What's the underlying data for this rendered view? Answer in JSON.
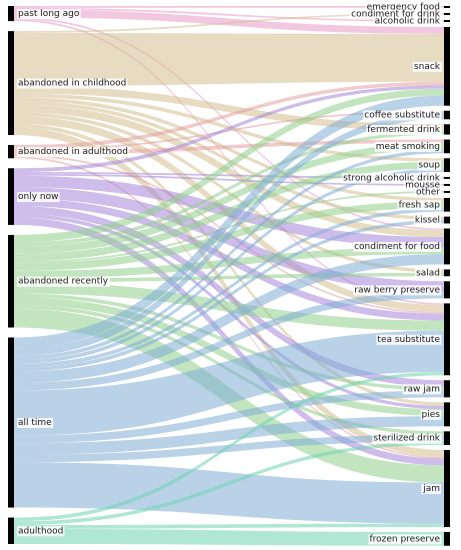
{
  "chart_data": {
    "type": "sankey",
    "title": "",
    "sources": [
      {
        "id": "past_long_ago",
        "label": "past long ago"
      },
      {
        "id": "abandoned_childhood",
        "label": "abandoned in childhood"
      },
      {
        "id": "abandoned_adulthood",
        "label": "abandoned in adulthood"
      },
      {
        "id": "only_now",
        "label": "only now"
      },
      {
        "id": "abandoned_recently",
        "label": "abandoned recently"
      },
      {
        "id": "all_time",
        "label": "all time"
      },
      {
        "id": "adulthood",
        "label": "adulthood"
      }
    ],
    "targets": [
      {
        "id": "emergency_food",
        "label": "emergency food"
      },
      {
        "id": "condiment_drink",
        "label": "condiment for drink"
      },
      {
        "id": "alcoholic_drink",
        "label": "alcoholic drink"
      },
      {
        "id": "snack",
        "label": "snack"
      },
      {
        "id": "coffee_substitute",
        "label": "coffee substitute"
      },
      {
        "id": "fermented_drink",
        "label": "fermented drink"
      },
      {
        "id": "meat_smoking",
        "label": "meat smoking"
      },
      {
        "id": "soup",
        "label": "soup"
      },
      {
        "id": "strong_alcoholic",
        "label": "strong alcoholic drink"
      },
      {
        "id": "mousse",
        "label": "mousse"
      },
      {
        "id": "other",
        "label": "other"
      },
      {
        "id": "fresh_sap",
        "label": "fresh sap"
      },
      {
        "id": "kissel",
        "label": "kissel"
      },
      {
        "id": "condiment_food",
        "label": "condiment for food"
      },
      {
        "id": "salad",
        "label": "salad"
      },
      {
        "id": "raw_berry",
        "label": "raw berry preserve"
      },
      {
        "id": "tea_substitute",
        "label": "tea substitute"
      },
      {
        "id": "raw_jam",
        "label": "raw jam"
      },
      {
        "id": "pies",
        "label": "pies"
      },
      {
        "id": "sterilized_drink",
        "label": "sterilized drink"
      },
      {
        "id": "jam",
        "label": "jam"
      },
      {
        "id": "frozen_preserve",
        "label": "frozen preserve"
      }
    ],
    "links": [
      {
        "source": "past_long_ago",
        "target": "snack",
        "value": 2
      },
      {
        "source": "past_long_ago",
        "target": "emergency_food",
        "value": 0.5
      },
      {
        "source": "past_long_ago",
        "target": "alcoholic_drink",
        "value": 0.5
      },
      {
        "source": "past_long_ago",
        "target": "condiment_food",
        "value": 0.5
      },
      {
        "source": "past_long_ago",
        "target": "tea_substitute",
        "value": 0.5
      },
      {
        "source": "abandoned_childhood",
        "target": "snack",
        "value": 14
      },
      {
        "source": "abandoned_childhood",
        "target": "fermented_drink",
        "value": 2
      },
      {
        "source": "abandoned_childhood",
        "target": "soup",
        "value": 1
      },
      {
        "source": "abandoned_childhood",
        "target": "kissel",
        "value": 1
      },
      {
        "source": "abandoned_childhood",
        "target": "condiment_food",
        "value": 2
      },
      {
        "source": "abandoned_childhood",
        "target": "salad",
        "value": 1
      },
      {
        "source": "abandoned_childhood",
        "target": "tea_substitute",
        "value": 2
      },
      {
        "source": "abandoned_childhood",
        "target": "pies",
        "value": 1
      },
      {
        "source": "abandoned_childhood",
        "target": "jam",
        "value": 2
      },
      {
        "source": "abandoned_childhood",
        "target": "condiment_drink",
        "value": 0.5
      },
      {
        "source": "abandoned_childhood",
        "target": "fresh_sap",
        "value": 1
      },
      {
        "source": "abandoned_adulthood",
        "target": "snack",
        "value": 1
      },
      {
        "source": "abandoned_adulthood",
        "target": "coffee_substitute",
        "value": 0.5
      },
      {
        "source": "abandoned_adulthood",
        "target": "meat_smoking",
        "value": 1
      },
      {
        "source": "abandoned_adulthood",
        "target": "jam",
        "value": 0.5
      },
      {
        "source": "abandoned_adulthood",
        "target": "tea_substitute",
        "value": 0.5
      },
      {
        "source": "only_now",
        "target": "snack",
        "value": 1
      },
      {
        "source": "only_now",
        "target": "condiment_food",
        "value": 3
      },
      {
        "source": "only_now",
        "target": "raw_berry",
        "value": 3
      },
      {
        "source": "only_now",
        "target": "tea_substitute",
        "value": 2
      },
      {
        "source": "only_now",
        "target": "raw_jam",
        "value": 2
      },
      {
        "source": "only_now",
        "target": "pies",
        "value": 1
      },
      {
        "source": "only_now",
        "target": "jam",
        "value": 2
      },
      {
        "source": "only_now",
        "target": "strong_alcoholic",
        "value": 0.5
      },
      {
        "source": "only_now",
        "target": "mousse",
        "value": 0.5
      },
      {
        "source": "abandoned_recently",
        "target": "snack",
        "value": 2
      },
      {
        "source": "abandoned_recently",
        "target": "fermented_drink",
        "value": 1
      },
      {
        "source": "abandoned_recently",
        "target": "meat_smoking",
        "value": 2
      },
      {
        "source": "abandoned_recently",
        "target": "soup",
        "value": 2
      },
      {
        "source": "abandoned_recently",
        "target": "fresh_sap",
        "value": 2
      },
      {
        "source": "abandoned_recently",
        "target": "condiment_food",
        "value": 2
      },
      {
        "source": "abandoned_recently",
        "target": "salad",
        "value": 1
      },
      {
        "source": "abandoned_recently",
        "target": "tea_substitute",
        "value": 3
      },
      {
        "source": "abandoned_recently",
        "target": "pies",
        "value": 2
      },
      {
        "source": "abandoned_recently",
        "target": "jam",
        "value": 5
      },
      {
        "source": "abandoned_recently",
        "target": "sterilized_drink",
        "value": 1
      },
      {
        "source": "abandoned_recently",
        "target": "raw_jam",
        "value": 1
      },
      {
        "source": "abandoned_recently",
        "target": "other",
        "value": 0.5
      },
      {
        "source": "all_time",
        "target": "snack",
        "value": 3
      },
      {
        "source": "all_time",
        "target": "coffee_substitute",
        "value": 2
      },
      {
        "source": "all_time",
        "target": "meat_smoking",
        "value": 1
      },
      {
        "source": "all_time",
        "target": "soup",
        "value": 1
      },
      {
        "source": "all_time",
        "target": "fresh_sap",
        "value": 1
      },
      {
        "source": "all_time",
        "target": "condiment_food",
        "value": 3
      },
      {
        "source": "all_time",
        "target": "raw_berry",
        "value": 2
      },
      {
        "source": "all_time",
        "target": "tea_substitute",
        "value": 12
      },
      {
        "source": "all_time",
        "target": "raw_jam",
        "value": 2
      },
      {
        "source": "all_time",
        "target": "pies",
        "value": 3
      },
      {
        "source": "all_time",
        "target": "sterilized_drink",
        "value": 2
      },
      {
        "source": "all_time",
        "target": "jam",
        "value": 12
      },
      {
        "source": "all_time",
        "target": "kissel",
        "value": 1
      },
      {
        "source": "adulthood",
        "target": "frozen_preserve",
        "value": 4
      },
      {
        "source": "adulthood",
        "target": "tea_substitute",
        "value": 1
      },
      {
        "source": "adulthood",
        "target": "jam",
        "value": 1
      },
      {
        "source": "adulthood",
        "target": "sterilized_drink",
        "value": 1
      }
    ],
    "colors": {
      "past_long_ago": "#e89ac8",
      "abandoned_childhood": "#d3c08f",
      "abandoned_adulthood": "#e6a0a0",
      "only_now": "#a585d8",
      "abandoned_recently": "#8fcf8c",
      "all_time": "#7fadd6",
      "adulthood": "#6fd3b0"
    }
  }
}
